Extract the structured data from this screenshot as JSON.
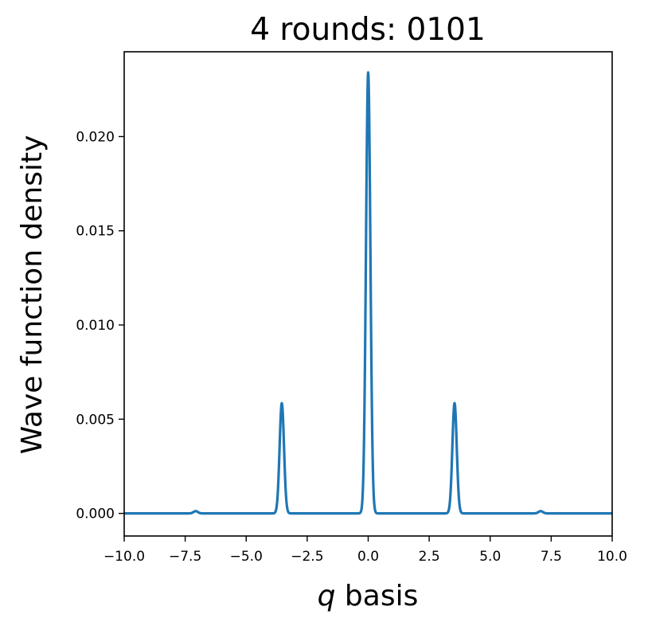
{
  "chart_data": {
    "type": "line",
    "title": "4 rounds: 0101",
    "xlabel_var": "q",
    "xlabel_rest": " basis",
    "ylabel": "Wave function density",
    "xlim": [
      -10.0,
      10.0
    ],
    "ylim": [
      -0.0012,
      0.0245
    ],
    "x_ticks": [
      -10.0,
      -7.5,
      -5.0,
      -2.5,
      0.0,
      2.5,
      5.0,
      7.5,
      10.0
    ],
    "x_tick_labels": [
      "−10.0",
      "−7.5",
      "−5.0",
      "−2.5",
      "0.0",
      "2.5",
      "5.0",
      "7.5",
      "10.0"
    ],
    "y_ticks": [
      0.0,
      0.005,
      0.01,
      0.015,
      0.02
    ],
    "y_tick_labels": [
      "0.000",
      "0.005",
      "0.010",
      "0.015",
      "0.020"
    ],
    "grid": false,
    "series": [
      {
        "color": "#1f77b4",
        "peaks": [
          {
            "center": -7.07,
            "height": 0.00012,
            "width": 0.09
          },
          {
            "center": -3.54,
            "height": 0.00585,
            "width": 0.09
          },
          {
            "center": 0.0,
            "height": 0.0234,
            "width": 0.09
          },
          {
            "center": 3.54,
            "height": 0.00585,
            "width": 0.09
          },
          {
            "center": 7.07,
            "height": 0.00012,
            "width": 0.09
          }
        ]
      }
    ]
  }
}
